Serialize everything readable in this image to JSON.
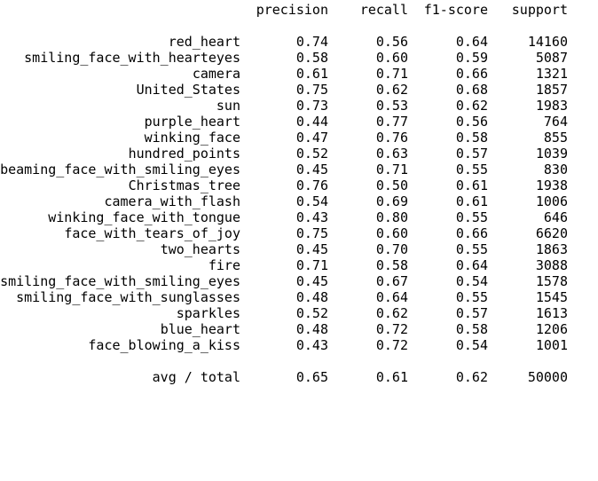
{
  "headers": {
    "precision": "precision",
    "recall": "recall",
    "f1": "f1-score",
    "support": "support"
  },
  "rows": [
    {
      "label": "red_heart",
      "precision": "0.74",
      "recall": "0.56",
      "f1": "0.64",
      "support": "14160"
    },
    {
      "label": "smiling_face_with_hearteyes",
      "precision": "0.58",
      "recall": "0.60",
      "f1": "0.59",
      "support": "5087"
    },
    {
      "label": "camera",
      "precision": "0.61",
      "recall": "0.71",
      "f1": "0.66",
      "support": "1321"
    },
    {
      "label": "United_States",
      "precision": "0.75",
      "recall": "0.62",
      "f1": "0.68",
      "support": "1857"
    },
    {
      "label": "sun",
      "precision": "0.73",
      "recall": "0.53",
      "f1": "0.62",
      "support": "1983"
    },
    {
      "label": "purple_heart",
      "precision": "0.44",
      "recall": "0.77",
      "f1": "0.56",
      "support": "764"
    },
    {
      "label": "winking_face",
      "precision": "0.47",
      "recall": "0.76",
      "f1": "0.58",
      "support": "855"
    },
    {
      "label": "hundred_points",
      "precision": "0.52",
      "recall": "0.63",
      "f1": "0.57",
      "support": "1039"
    },
    {
      "label": "beaming_face_with_smiling_eyes",
      "precision": "0.45",
      "recall": "0.71",
      "f1": "0.55",
      "support": "830"
    },
    {
      "label": "Christmas_tree",
      "precision": "0.76",
      "recall": "0.50",
      "f1": "0.61",
      "support": "1938"
    },
    {
      "label": "camera_with_flash",
      "precision": "0.54",
      "recall": "0.69",
      "f1": "0.61",
      "support": "1006"
    },
    {
      "label": "winking_face_with_tongue",
      "precision": "0.43",
      "recall": "0.80",
      "f1": "0.55",
      "support": "646"
    },
    {
      "label": "face_with_tears_of_joy",
      "precision": "0.75",
      "recall": "0.60",
      "f1": "0.66",
      "support": "6620"
    },
    {
      "label": "two_hearts",
      "precision": "0.45",
      "recall": "0.70",
      "f1": "0.55",
      "support": "1863"
    },
    {
      "label": "fire",
      "precision": "0.71",
      "recall": "0.58",
      "f1": "0.64",
      "support": "3088"
    },
    {
      "label": "smiling_face_with_smiling_eyes",
      "precision": "0.45",
      "recall": "0.67",
      "f1": "0.54",
      "support": "1578"
    },
    {
      "label": "smiling_face_with_sunglasses",
      "precision": "0.48",
      "recall": "0.64",
      "f1": "0.55",
      "support": "1545"
    },
    {
      "label": "sparkles",
      "precision": "0.52",
      "recall": "0.62",
      "f1": "0.57",
      "support": "1613"
    },
    {
      "label": "blue_heart",
      "precision": "0.48",
      "recall": "0.72",
      "f1": "0.58",
      "support": "1206"
    },
    {
      "label": "face_blowing_a_kiss",
      "precision": "0.43",
      "recall": "0.72",
      "f1": "0.54",
      "support": "1001"
    }
  ],
  "total": {
    "label": "avg / total",
    "precision": "0.65",
    "recall": "0.61",
    "f1": "0.62",
    "support": "50000"
  }
}
